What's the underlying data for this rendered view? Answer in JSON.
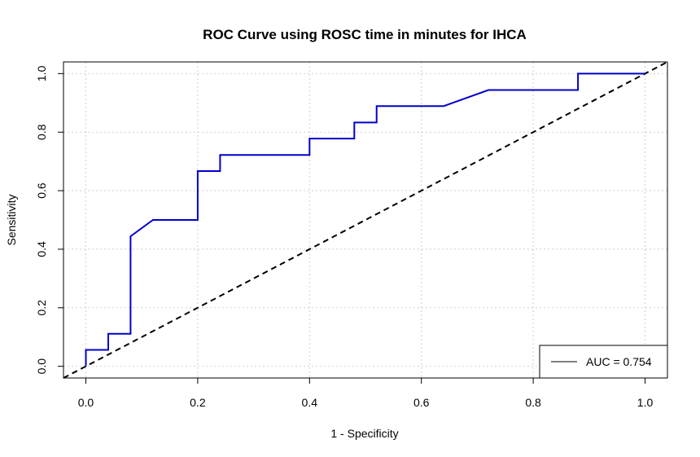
{
  "chart_data": {
    "type": "line",
    "title": "ROC Curve using ROSC time in minutes for IHCA",
    "xlabel": "1 - Specificity",
    "ylabel": "Sensitivity",
    "xlim": [
      -0.04,
      1.04
    ],
    "ylim": [
      -0.04,
      1.04
    ],
    "xticks": [
      0.0,
      0.2,
      0.4,
      0.6,
      0.8,
      1.0
    ],
    "yticks": [
      0.0,
      0.2,
      0.4,
      0.6,
      0.8,
      1.0
    ],
    "xtick_labels": [
      "0.0",
      "0.2",
      "0.4",
      "0.6",
      "0.8",
      "1.0"
    ],
    "ytick_labels": [
      "0.0",
      "0.2",
      "0.4",
      "0.6",
      "0.8",
      "1.0"
    ],
    "grid": true,
    "series": [
      {
        "color": "#0000cc",
        "x": [
          0.0,
          0.0,
          0.04,
          0.04,
          0.08,
          0.08,
          0.12,
          0.2,
          0.2,
          0.24,
          0.24,
          0.4,
          0.4,
          0.48,
          0.48,
          0.52,
          0.52,
          0.64,
          0.72,
          0.88,
          0.88,
          1.0
        ],
        "y": [
          0.0,
          0.056,
          0.056,
          0.111,
          0.111,
          0.444,
          0.5,
          0.5,
          0.667,
          0.667,
          0.722,
          0.722,
          0.778,
          0.778,
          0.833,
          0.833,
          0.889,
          0.889,
          0.944,
          0.944,
          1.0,
          1.0
        ]
      }
    ],
    "reference_line": {
      "x": [
        -0.04,
        1.04
      ],
      "y": [
        -0.04,
        1.04
      ],
      "style": "dashed",
      "color": "#000000"
    },
    "legend": {
      "position": "bottom-right",
      "entries": [
        {
          "label": "AUC = 0.754",
          "color": "#000000"
        }
      ]
    }
  }
}
